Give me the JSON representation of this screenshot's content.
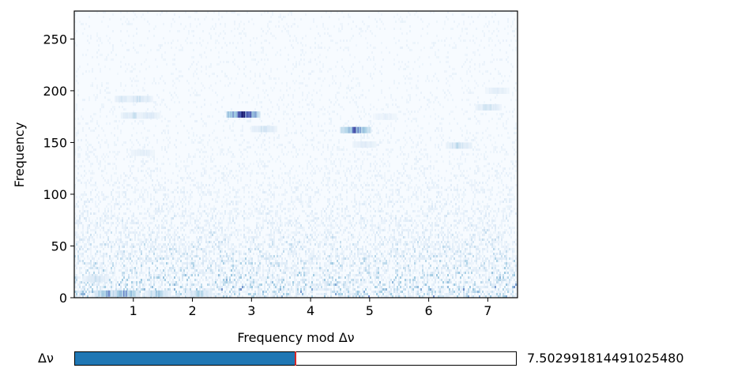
{
  "chart_data": {
    "type": "heatmap",
    "title": "",
    "xlabel": "Frequency mod Δν",
    "ylabel": "Frequency",
    "xlim": [
      0,
      7.502991814491025
    ],
    "ylim": [
      0,
      277
    ],
    "xticks": [
      1,
      2,
      3,
      4,
      5,
      6,
      7
    ],
    "xticklabels": [
      "1",
      "2",
      "3",
      "4",
      "5",
      "6",
      "7"
    ],
    "yticks": [
      0,
      50,
      100,
      150,
      200,
      250
    ],
    "yticklabels": [
      "0",
      "50",
      "100",
      "150",
      "200",
      "250"
    ],
    "colormap": [
      "#f7fbff",
      "#dbe9f6",
      "#9ecae1",
      "#5a6fc0",
      "#2b2f8f",
      "#0a0a5a"
    ],
    "grid": false,
    "features": [
      {
        "x": 0.9,
        "y": 192,
        "intensity": 0.35
      },
      {
        "x": 1.1,
        "y": 192,
        "intensity": 0.3
      },
      {
        "x": 1.0,
        "y": 176,
        "intensity": 0.3
      },
      {
        "x": 1.25,
        "y": 176,
        "intensity": 0.25
      },
      {
        "x": 1.15,
        "y": 140,
        "intensity": 0.2
      },
      {
        "x": 2.85,
        "y": 177,
        "intensity": 1.0
      },
      {
        "x": 3.2,
        "y": 163,
        "intensity": 0.3
      },
      {
        "x": 4.75,
        "y": 162,
        "intensity": 0.75
      },
      {
        "x": 4.9,
        "y": 148,
        "intensity": 0.25
      },
      {
        "x": 5.25,
        "y": 175,
        "intensity": 0.15
      },
      {
        "x": 6.5,
        "y": 147,
        "intensity": 0.35
      },
      {
        "x": 7.0,
        "y": 184,
        "intensity": 0.3
      },
      {
        "x": 7.15,
        "y": 200,
        "intensity": 0.2
      },
      {
        "x": 0.6,
        "y": 4,
        "intensity": 0.7
      },
      {
        "x": 0.85,
        "y": 4,
        "intensity": 0.6
      },
      {
        "x": 1.4,
        "y": 4,
        "intensity": 0.45
      },
      {
        "x": 2.1,
        "y": 4,
        "intensity": 0.4
      },
      {
        "x": 0.35,
        "y": 18,
        "intensity": 0.3
      }
    ]
  },
  "slider": {
    "label": "Δν",
    "value_text": "7.502991814491025480",
    "min": 0,
    "max": 15,
    "value": 7.502991814491025,
    "fill_color": "#1f77b4",
    "handle_color": "#d62728"
  }
}
